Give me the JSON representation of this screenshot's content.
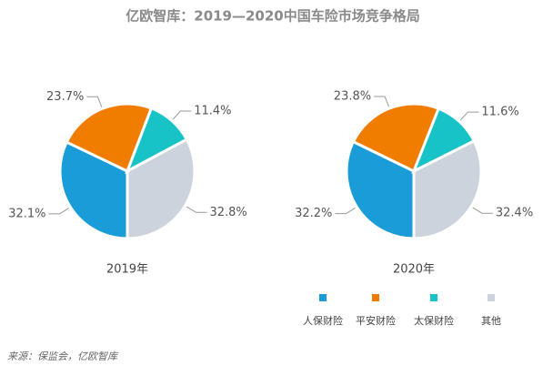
{
  "title": "亿欧智库：2019—2020中国车险市场竞争格局",
  "source": "来源：保监会，亿欧智库",
  "chart_data": [
    {
      "type": "pie",
      "title": "2019年",
      "categories": [
        "人保财险",
        "平安财险",
        "太保财险",
        "其他"
      ],
      "values": [
        32.1,
        23.7,
        11.4,
        32.8
      ],
      "value_labels": [
        "32.1%",
        "23.7%",
        "11.4%",
        "32.8%"
      ],
      "colors": [
        "#1a9cd8",
        "#f07d00",
        "#17c3c7",
        "#ccd3dc"
      ]
    },
    {
      "type": "pie",
      "title": "2020年",
      "categories": [
        "人保财险",
        "平安财险",
        "太保财险",
        "其他"
      ],
      "values": [
        32.2,
        23.8,
        11.6,
        32.4
      ],
      "value_labels": [
        "32.2%",
        "23.8%",
        "11.6%",
        "32.4%"
      ],
      "colors": [
        "#1a9cd8",
        "#f07d00",
        "#17c3c7",
        "#ccd3dc"
      ]
    }
  ]
}
